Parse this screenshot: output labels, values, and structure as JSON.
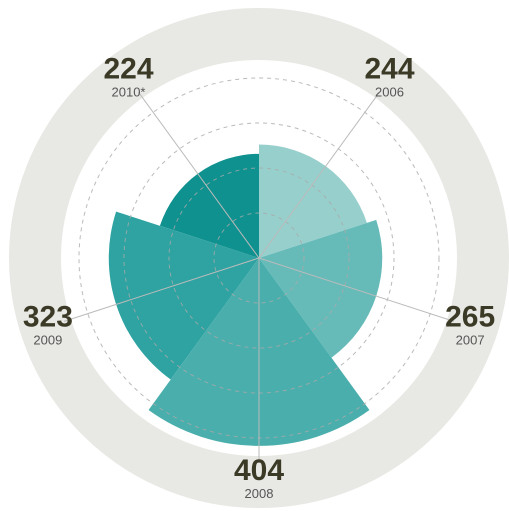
{
  "chart_data": {
    "type": "rose",
    "categories": [
      "2006",
      "2007",
      "2008",
      "2009",
      "2010*"
    ],
    "values": [
      244,
      265,
      404,
      323,
      224
    ],
    "colors": [
      "#97cfcc",
      "#66bbb9",
      "#4aaeac",
      "#2ea3a1",
      "#0e918f"
    ],
    "rlim": [
      0,
      430
    ]
  }
}
